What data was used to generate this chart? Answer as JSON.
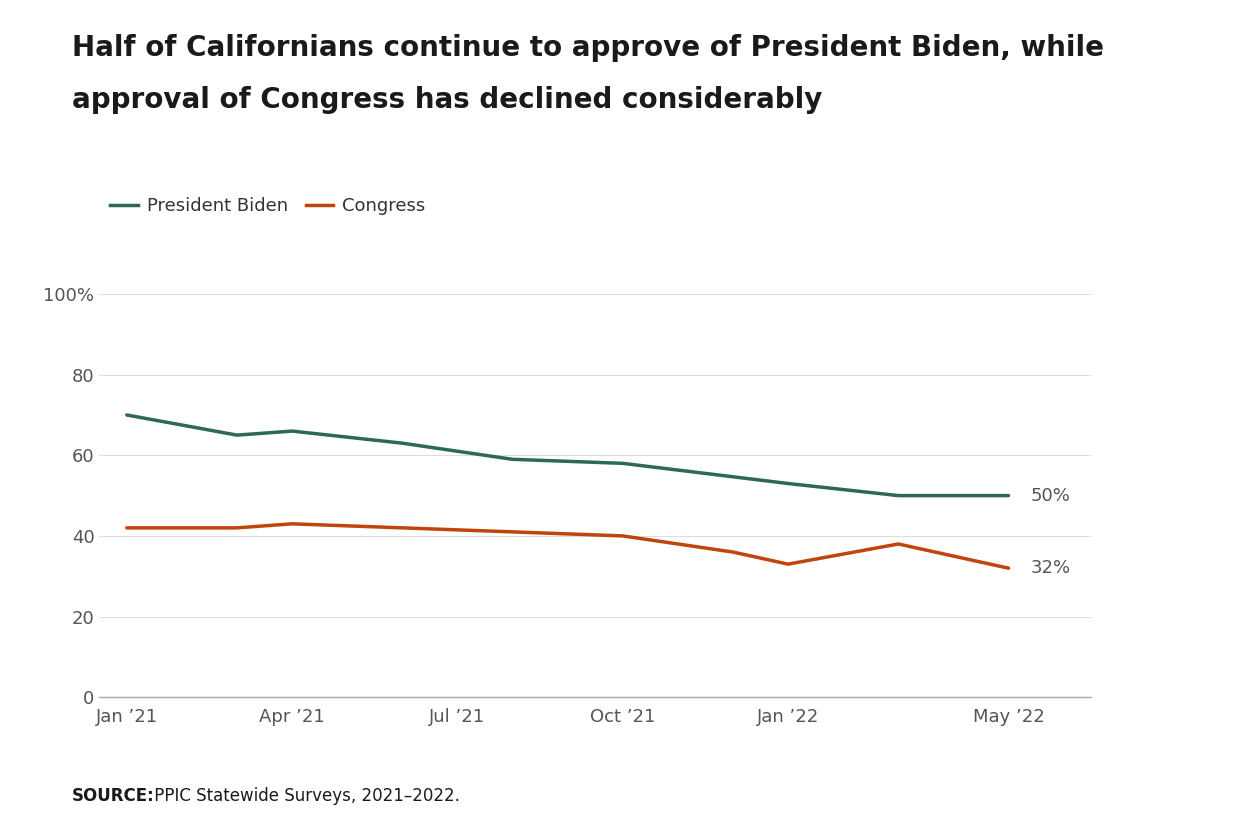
{
  "title_line1": "Half of Californians continue to approve of President Biden, while",
  "title_line2": "approval of Congress has declined considerably",
  "biden_label": "President Biden",
  "congress_label": "Congress",
  "biden_color": "#2d6a4f",
  "congress_color": "#c1440e",
  "source_bold": "SOURCE:",
  "source_rest": " PPIC Statewide Surveys, 2021–2022.",
  "x_tick_positions": [
    0,
    3,
    6,
    9,
    12,
    16
  ],
  "x_tick_labels": [
    "Jan ’21",
    "Apr ’21",
    "Jul ’21",
    "Oct ’21",
    "Jan ’22",
    "May ’22"
  ],
  "biden_x": [
    0,
    2,
    3,
    5,
    7,
    9,
    12,
    14,
    16
  ],
  "biden_y": [
    70,
    65,
    66,
    63,
    59,
    58,
    53,
    50,
    50
  ],
  "congress_x": [
    0,
    2,
    3,
    5,
    7,
    9,
    11,
    12,
    14,
    16
  ],
  "congress_y": [
    42,
    42,
    43,
    42,
    41,
    40,
    36,
    33,
    38,
    32
  ],
  "ylim": [
    0,
    100
  ],
  "xlim": [
    -0.5,
    17.5
  ],
  "yticks": [
    0,
    20,
    40,
    60,
    80,
    100
  ],
  "end_label_biden": "50%",
  "end_label_congress": "32%",
  "background_color": "#ffffff",
  "source_bg": "#e8e8e8",
  "line_width": 2.5,
  "title_fontsize": 20,
  "legend_fontsize": 13,
  "tick_fontsize": 13,
  "annotation_fontsize": 13
}
